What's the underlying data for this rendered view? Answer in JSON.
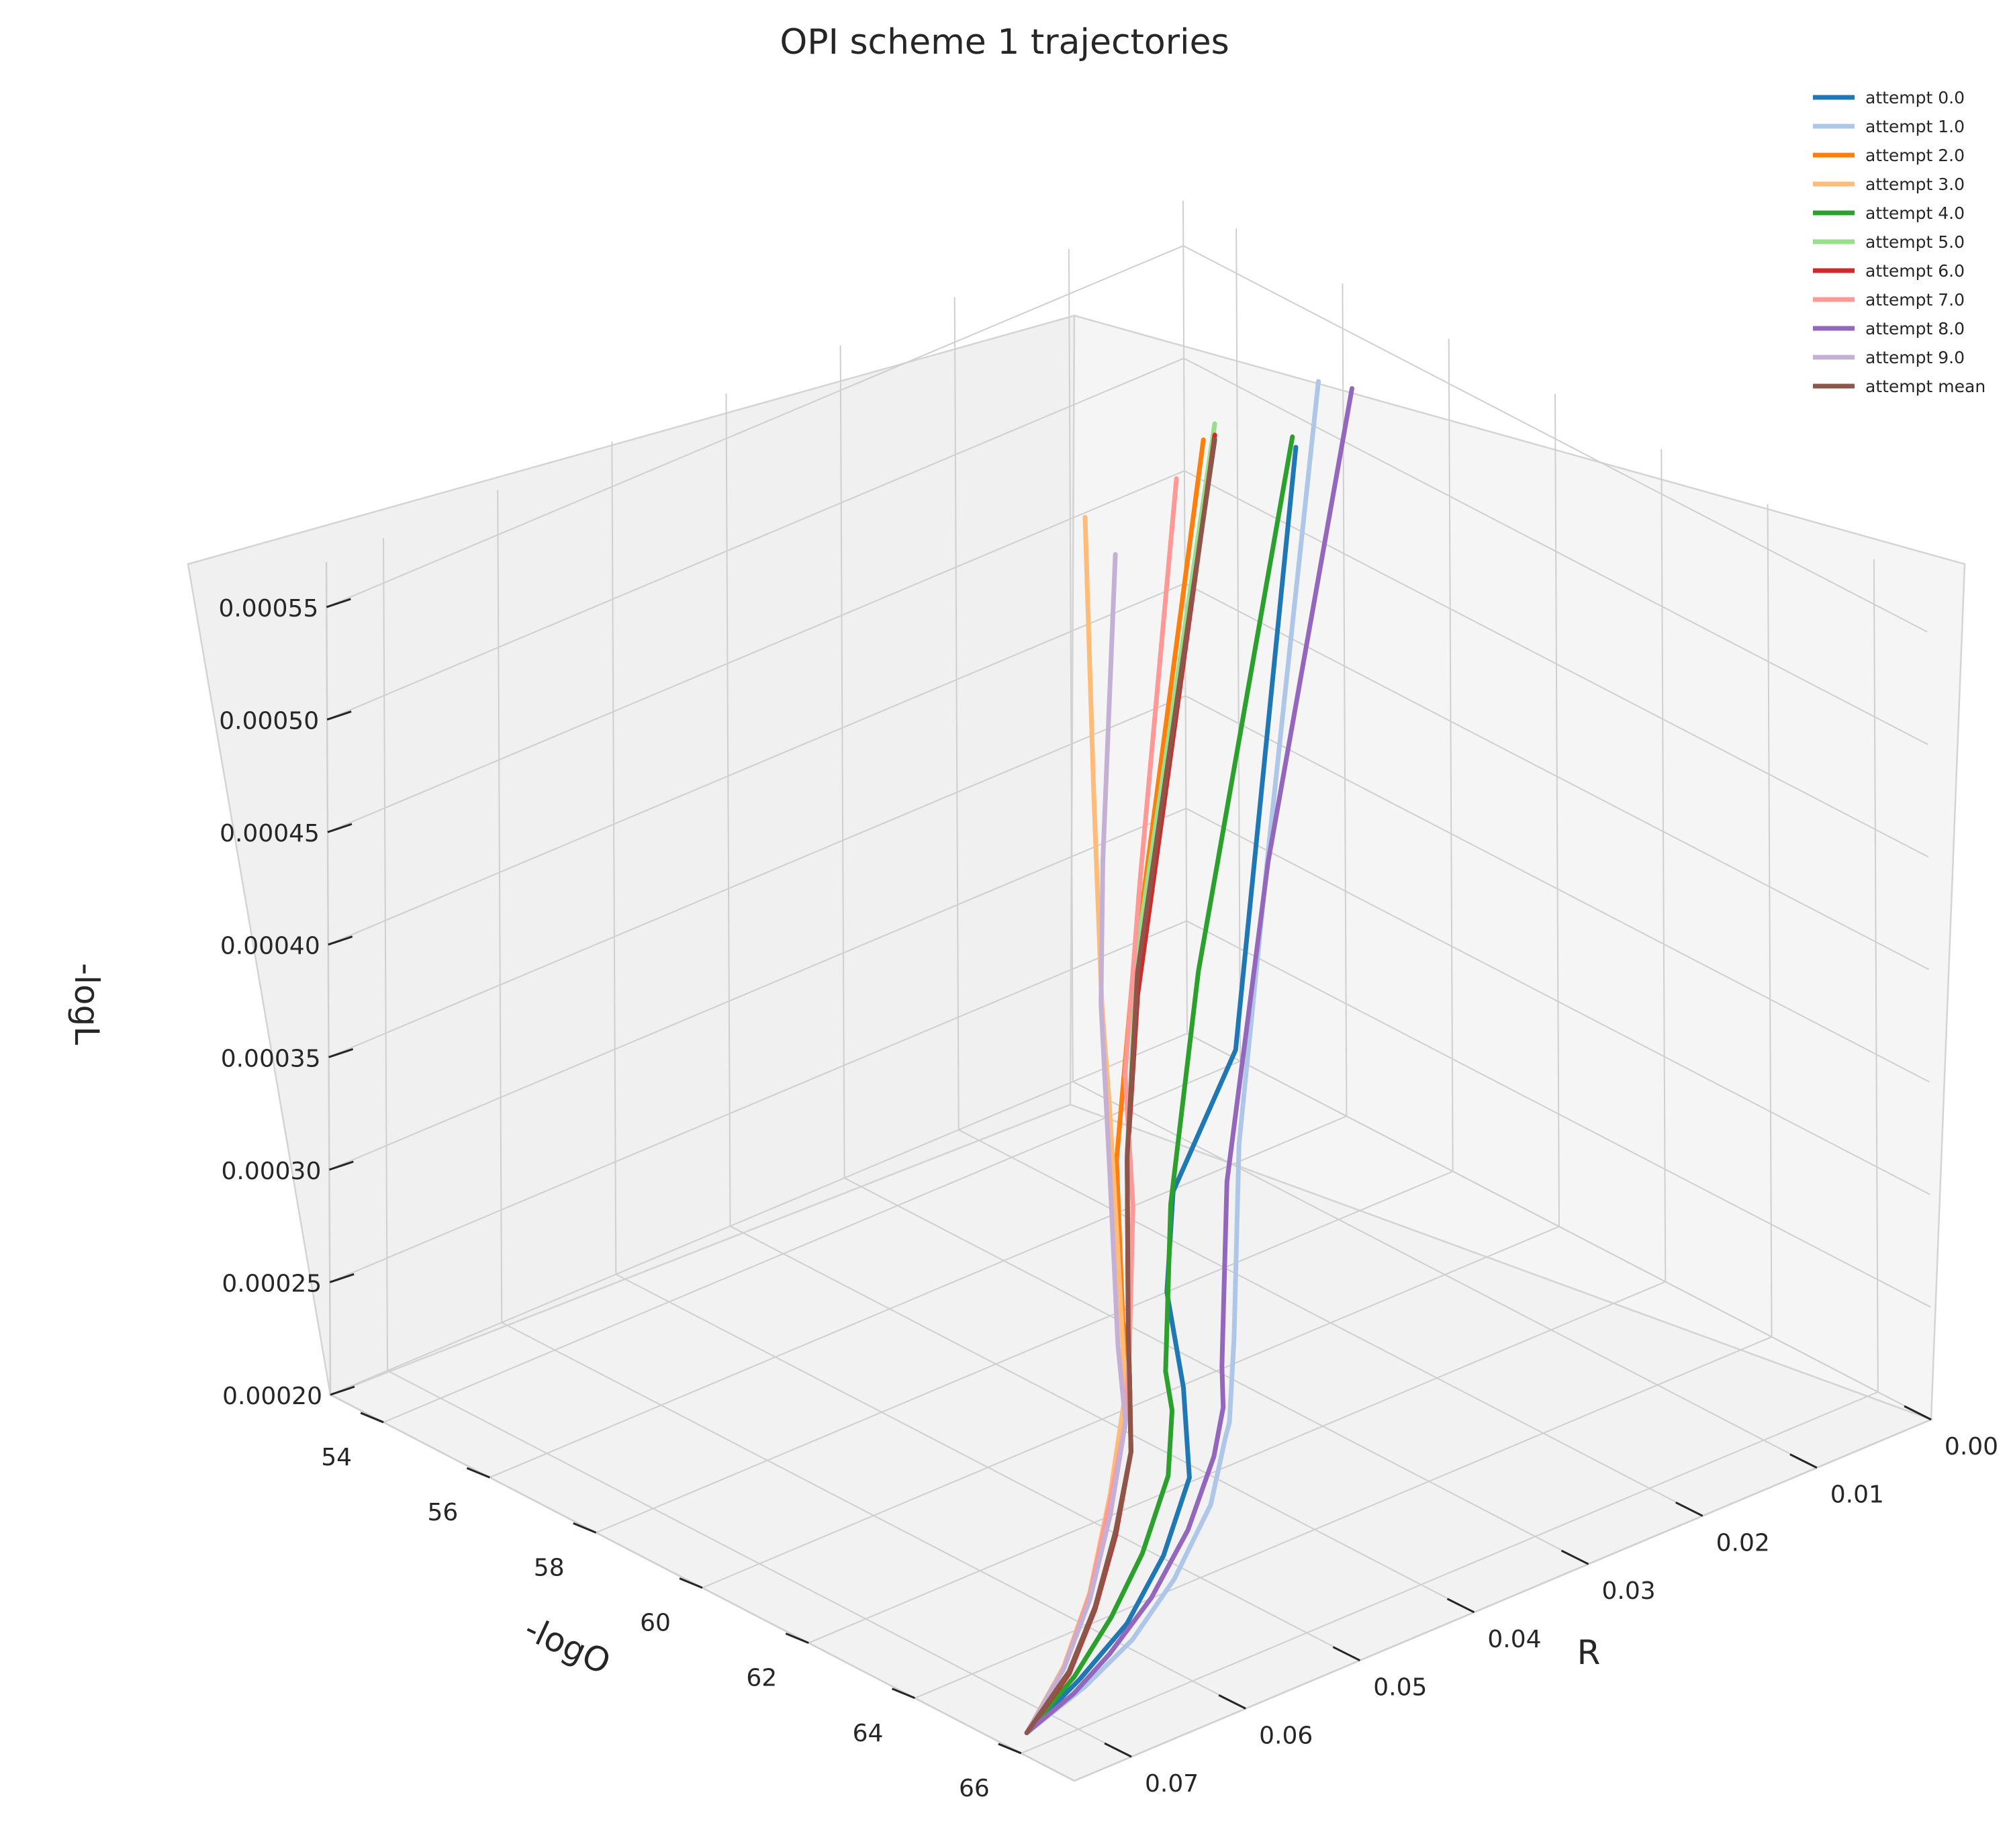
{
  "chart_data": {
    "type": "line",
    "projection": "3d",
    "title": "OPI scheme 1 trajectories",
    "xlabel": "-logO",
    "ylabel": "R",
    "zlabel": "-logL",
    "xlim": [
      53,
      67
    ],
    "ylim": [
      0.0,
      0.075
    ],
    "zlim": [
      0.0002,
      0.00057
    ],
    "xticks": [
      "54",
      "56",
      "58",
      "60",
      "62",
      "64",
      "66"
    ],
    "yticks": [
      "0.00",
      "0.01",
      "0.02",
      "0.03",
      "0.04",
      "0.05",
      "0.06",
      "0.07"
    ],
    "zticks": [
      "0.00020",
      "0.00025",
      "0.00030",
      "0.00035",
      "0.00040",
      "0.00045",
      "0.00050",
      "0.00055"
    ],
    "grid": true,
    "legend_position": "top-right",
    "series": [
      {
        "name": "attempt 0.0",
        "color": "#1f77b4",
        "x": [
          66.0,
          65.6,
          65.2,
          64.6,
          63.8,
          62.4,
          60.8,
          59.2,
          57.8,
          56.4
        ],
        "y": [
          0.0745,
          0.068,
          0.062,
          0.056,
          0.05,
          0.044,
          0.038,
          0.03,
          0.018,
          0.006
        ],
        "z": [
          0.000208,
          0.000213,
          0.00022,
          0.00023,
          0.000242,
          0.000252,
          0.000262,
          0.00027,
          0.00029,
          0.000515
        ]
      },
      {
        "name": "attempt 1.0",
        "color": "#aec7e8",
        "x": [
          66.0,
          65.7,
          65.3,
          64.8,
          64.2,
          63.4,
          62.4,
          61.2,
          59.8,
          57.8,
          56.4
        ],
        "y": [
          0.0745,
          0.068,
          0.062,
          0.056,
          0.05,
          0.045,
          0.04,
          0.034,
          0.027,
          0.015,
          0.004
        ],
        "z": [
          0.000208,
          0.000211,
          0.000214,
          0.000222,
          0.000235,
          0.000244,
          0.000228,
          0.000238,
          0.000292,
          0.000375,
          0.00054
        ]
      },
      {
        "name": "attempt 2.0",
        "color": "#ff7f0e",
        "x": [
          66.0,
          65.4,
          64.6,
          63.7,
          62.7,
          61.6,
          60.4,
          59.0,
          57.8,
          56.6
        ],
        "y": [
          0.0745,
          0.068,
          0.062,
          0.056,
          0.05,
          0.045,
          0.04,
          0.034,
          0.027,
          0.015
        ],
        "z": [
          0.000208,
          0.000214,
          0.00022,
          0.00023,
          0.00024,
          0.00025,
          0.000248,
          0.00029,
          0.00034,
          0.00054
        ]
      },
      {
        "name": "attempt 3.0",
        "color": "#ffbb78",
        "x": [
          66.0,
          65.3,
          64.5,
          63.6,
          62.6,
          61.6,
          60.6,
          59.6,
          58.6,
          57.6
        ],
        "y": [
          0.0745,
          0.068,
          0.062,
          0.056,
          0.05,
          0.046,
          0.042,
          0.038,
          0.034,
          0.03
        ],
        "z": [
          0.000208,
          0.000215,
          0.000225,
          0.000245,
          0.000265,
          0.00031,
          0.00035,
          0.000375,
          0.00045,
          0.00055
        ]
      },
      {
        "name": "attempt 4.0",
        "color": "#2ca02c",
        "x": [
          66.0,
          65.5,
          64.9,
          64.2,
          63.4,
          62.4,
          61.2,
          59.8,
          58.4,
          57.2
        ],
        "y": [
          0.0745,
          0.068,
          0.062,
          0.056,
          0.05,
          0.045,
          0.04,
          0.033,
          0.024,
          0.01
        ],
        "z": [
          0.000208,
          0.000213,
          0.000219,
          0.000226,
          0.000238,
          0.000244,
          0.000236,
          0.000278,
          0.000345,
          0.000538
        ]
      },
      {
        "name": "attempt 5.0",
        "color": "#98df8a",
        "x": [
          66.0,
          65.4,
          64.6,
          63.7,
          62.7,
          61.6,
          60.5,
          59.2,
          57.9,
          56.6
        ],
        "y": [
          0.0745,
          0.068,
          0.062,
          0.056,
          0.05,
          0.045,
          0.04,
          0.034,
          0.027,
          0.014
        ],
        "z": [
          0.000208,
          0.000214,
          0.00022,
          0.000229,
          0.00024,
          0.000248,
          0.000247,
          0.000296,
          0.000355,
          0.000545
        ]
      },
      {
        "name": "attempt 6.0",
        "color": "#d62728",
        "x": [
          66.0,
          65.4,
          64.6,
          63.7,
          62.7,
          61.6,
          60.5,
          59.2,
          57.9,
          56.6
        ],
        "y": [
          0.0745,
          0.068,
          0.062,
          0.056,
          0.05,
          0.045,
          0.04,
          0.034,
          0.027,
          0.014
        ],
        "z": [
          0.000208,
          0.000213,
          0.000219,
          0.000228,
          0.00024,
          0.000249,
          0.000245,
          0.000292,
          0.000335,
          0.00054
        ]
      },
      {
        "name": "attempt 7.0",
        "color": "#ff9896",
        "x": [
          66.0,
          65.3,
          64.5,
          63.6,
          62.6,
          61.6,
          60.6,
          59.6,
          58.6,
          57.6
        ],
        "y": [
          0.0745,
          0.068,
          0.062,
          0.056,
          0.05,
          0.045,
          0.04,
          0.036,
          0.03,
          0.022
        ],
        "z": [
          0.000208,
          0.000214,
          0.000224,
          0.000242,
          0.000252,
          0.000262,
          0.000302,
          0.00034,
          0.0004,
          0.00055
        ]
      },
      {
        "name": "attempt 8.0",
        "color": "#9467bd",
        "x": [
          66.0,
          65.7,
          65.3,
          64.8,
          64.2,
          63.4,
          62.5,
          61.4,
          60.0,
          58.0,
          56.6
        ],
        "y": [
          0.0745,
          0.069,
          0.064,
          0.058,
          0.052,
          0.046,
          0.041,
          0.036,
          0.029,
          0.016,
          0.002
        ],
        "z": [
          0.000208,
          0.00021,
          0.000212,
          0.000218,
          0.000228,
          0.000238,
          0.000238,
          0.000232,
          0.000282,
          0.000372,
          0.000535
        ]
      },
      {
        "name": "attempt 9.0",
        "color": "#c5b0d5",
        "x": [
          66.0,
          65.3,
          64.5,
          63.6,
          62.6,
          61.6,
          60.6,
          59.8,
          59.2,
          58.6
        ],
        "y": [
          0.0745,
          0.068,
          0.062,
          0.056,
          0.05,
          0.046,
          0.042,
          0.039,
          0.036,
          0.032
        ],
        "z": [
          0.000208,
          0.000214,
          0.000222,
          0.000236,
          0.000252,
          0.000265,
          0.00032,
          0.00038,
          0.00043,
          0.00055
        ]
      },
      {
        "name": "attempt mean",
        "color": "#8c564b",
        "x": [
          66.0,
          65.4,
          64.6,
          63.7,
          62.7,
          61.6,
          60.5,
          59.2,
          57.9,
          56.6
        ],
        "y": [
          0.0745,
          0.068,
          0.062,
          0.056,
          0.05,
          0.045,
          0.04,
          0.034,
          0.027,
          0.014
        ],
        "z": [
          0.000208,
          0.000214,
          0.00022,
          0.00023,
          0.00024,
          0.000249,
          0.000246,
          0.000294,
          0.000345,
          0.000538
        ]
      }
    ]
  }
}
